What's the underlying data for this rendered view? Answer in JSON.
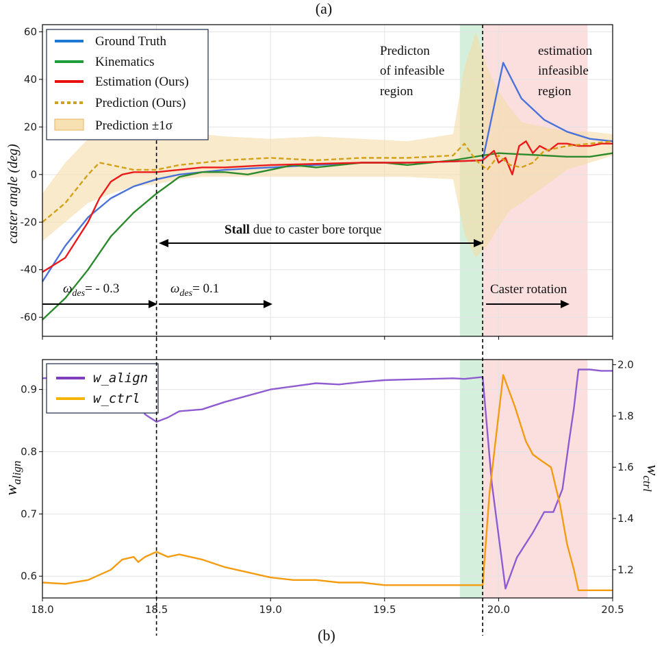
{
  "chart_data": [
    {
      "type": "line",
      "panel_label": "(a)",
      "ylabel": "caster angle (deg)",
      "xlim": [
        18.0,
        20.5
      ],
      "ylim": [
        -68,
        63
      ],
      "yticks": [
        -60,
        -40,
        -20,
        0,
        20,
        40,
        60
      ],
      "grid": true,
      "legend_position": "top-left",
      "shaded_regions": [
        {
          "x": [
            19.83,
            19.93
          ],
          "color": "#d4f0dc"
        },
        {
          "x": [
            19.93,
            20.39
          ],
          "color": "#fbdede"
        }
      ],
      "vlines": [
        18.5,
        19.93
      ],
      "series": [
        {
          "name": "Ground Truth",
          "color": "#4a72d8",
          "x": [
            18.0,
            18.1,
            18.2,
            18.3,
            18.4,
            18.5,
            18.6,
            18.7,
            18.8,
            19.0,
            19.2,
            19.4,
            19.6,
            19.8,
            19.93,
            20.02,
            20.1,
            20.2,
            20.3,
            20.4,
            20.5
          ],
          "y": [
            -45,
            -30,
            -18,
            -10,
            -5,
            -2,
            0,
            1,
            2,
            3,
            4,
            5,
            5,
            5.5,
            6,
            47,
            32,
            23,
            18,
            15,
            14
          ]
        },
        {
          "name": "Kinematics",
          "color": "#2b8a2b",
          "x": [
            18.0,
            18.1,
            18.2,
            18.3,
            18.4,
            18.5,
            18.6,
            18.7,
            18.8,
            18.9,
            19.0,
            19.1,
            19.2,
            19.3,
            19.4,
            19.5,
            19.6,
            19.7,
            19.8,
            19.93,
            20.0,
            20.1,
            20.2,
            20.3,
            20.4,
            20.5
          ],
          "y": [
            -61,
            -52,
            -40,
            -26,
            -16,
            -8,
            -1,
            1,
            1,
            0,
            2,
            4,
            3,
            4,
            5,
            5,
            4,
            5,
            6,
            8,
            9,
            8.5,
            8,
            7.5,
            7.5,
            9
          ]
        },
        {
          "name": "Estimation (Ours)",
          "color": "#ea1a1a",
          "x": [
            18.0,
            18.1,
            18.2,
            18.25,
            18.3,
            18.35,
            18.4,
            18.5,
            18.6,
            18.7,
            18.8,
            19.0,
            19.2,
            19.4,
            19.6,
            19.8,
            19.93,
            19.98,
            20.0,
            20.03,
            20.06,
            20.09,
            20.12,
            20.15,
            20.18,
            20.22,
            20.26,
            20.3,
            20.35,
            20.4,
            20.45,
            20.5
          ],
          "y": [
            -41,
            -35,
            -20,
            -10,
            -3,
            0,
            1,
            1,
            2,
            3,
            3,
            4,
            4.5,
            5,
            5,
            5.5,
            6,
            10,
            5,
            7,
            0,
            12,
            14,
            9,
            12,
            10,
            13,
            13,
            12,
            12,
            13,
            13
          ]
        },
        {
          "name": "Prediction  (Ours)",
          "color": "#d4a017",
          "dash": true,
          "x": [
            18.0,
            18.1,
            18.2,
            18.25,
            18.3,
            18.35,
            18.4,
            18.5,
            18.6,
            18.7,
            18.8,
            19.0,
            19.2,
            19.4,
            19.6,
            19.8,
            19.85,
            19.9,
            19.95,
            20.0,
            20.05,
            20.1,
            20.15,
            20.2,
            20.3,
            20.4,
            20.5
          ],
          "y": [
            -20,
            -12,
            0,
            5,
            4,
            3,
            2,
            2,
            4,
            5,
            6,
            7,
            6,
            7,
            7,
            8,
            13,
            6,
            2,
            8,
            4,
            3,
            5,
            10,
            12,
            13,
            14
          ]
        }
      ],
      "band": {
        "name": "Prediction $\\pm 1\\sigma$",
        "x": [
          18.0,
          18.1,
          18.2,
          18.3,
          18.4,
          18.5,
          18.6,
          18.7,
          18.8,
          19.0,
          19.2,
          19.4,
          19.6,
          19.8,
          19.85,
          19.9,
          19.95,
          20.0,
          20.05,
          20.1,
          20.2,
          20.3,
          20.4,
          20.5
        ],
        "upper": [
          -8,
          5,
          15,
          25,
          22,
          18,
          18,
          17,
          16,
          15,
          16,
          15,
          14,
          17,
          45,
          60,
          45,
          35,
          28,
          22,
          20,
          18,
          18,
          17
        ],
        "lower": [
          -28,
          -20,
          -12,
          -8,
          -5,
          -4,
          -2,
          -1,
          -1,
          -1,
          -1,
          -1,
          -1,
          -2,
          -25,
          -35,
          -30,
          -22,
          -15,
          -12,
          -5,
          2,
          5,
          8
        ]
      },
      "legend_labels": {
        "gt": "Ground Truth",
        "kin": "Kinematics",
        "est": "Estimation (Ours)",
        "pred": "Prediction  (Ours)",
        "band_prefix": "Prediction",
        "band_suffix": "±1σ"
      },
      "annotations": {
        "stall_bold": "Stall",
        "stall_rest": " due to caster bore torque",
        "w1_sym": "ω",
        "w1_sub": "des",
        "w1_val": "= - 0.3",
        "w2_sym": "ω",
        "w2_sub": "des",
        "w2_val": "= 0.1",
        "caster_rotation": "Caster rotation",
        "predict_region": [
          "Predicton",
          "of infeasible",
          "region"
        ],
        "infeasible_region": [
          "estimation",
          "infeasible",
          "region"
        ]
      }
    },
    {
      "type": "line",
      "panel_label": "(b)",
      "ylabel_left": "w_align",
      "ylabel_right": "w_ctrl",
      "xlim": [
        18.0,
        20.5
      ],
      "xticks": [
        18.0,
        18.5,
        19.0,
        19.5,
        20.0,
        20.5
      ],
      "ylim_left": [
        0.565,
        0.948
      ],
      "yticks_left": [
        0.6,
        0.7,
        0.8,
        0.9
      ],
      "ylim_right": [
        1.09,
        2.02
      ],
      "yticks_right": [
        1.2,
        1.4,
        1.6,
        1.8,
        2.0
      ],
      "legend_position": "top-left",
      "series": [
        {
          "name": "w_align",
          "axis": "left",
          "color": "#8e5bd0",
          "x": [
            18.0,
            18.1,
            18.2,
            18.3,
            18.4,
            18.45,
            18.5,
            18.55,
            18.6,
            18.7,
            18.8,
            18.9,
            19.0,
            19.1,
            19.2,
            19.3,
            19.4,
            19.5,
            19.6,
            19.7,
            19.8,
            19.85,
            19.93,
            19.97,
            20.03,
            20.08,
            20.15,
            20.2,
            20.24,
            20.28,
            20.31,
            20.33,
            20.35,
            20.4,
            20.45,
            20.5
          ],
          "y": [
            0.918,
            0.92,
            0.918,
            0.915,
            0.9,
            0.86,
            0.848,
            0.855,
            0.865,
            0.868,
            0.88,
            0.89,
            0.9,
            0.905,
            0.91,
            0.908,
            0.912,
            0.915,
            0.916,
            0.917,
            0.918,
            0.917,
            0.92,
            0.75,
            0.58,
            0.63,
            0.67,
            0.703,
            0.703,
            0.74,
            0.82,
            0.87,
            0.932,
            0.932,
            0.93,
            0.93
          ]
        },
        {
          "name": "w_ctrl",
          "axis": "right",
          "color": "#f39c12",
          "x": [
            18.0,
            18.1,
            18.2,
            18.3,
            18.35,
            18.4,
            18.42,
            18.45,
            18.5,
            18.55,
            18.6,
            18.7,
            18.8,
            18.9,
            19.0,
            19.1,
            19.2,
            19.3,
            19.4,
            19.5,
            19.6,
            19.7,
            19.8,
            19.93,
            19.96,
            20.02,
            20.07,
            20.12,
            20.15,
            20.18,
            20.23,
            20.27,
            20.3,
            20.33,
            20.35,
            20.4,
            20.5
          ],
          "y": [
            1.15,
            1.145,
            1.16,
            1.2,
            1.24,
            1.25,
            1.23,
            1.25,
            1.27,
            1.25,
            1.26,
            1.24,
            1.21,
            1.19,
            1.17,
            1.16,
            1.16,
            1.15,
            1.15,
            1.14,
            1.14,
            1.14,
            1.14,
            1.14,
            1.5,
            1.96,
            1.84,
            1.7,
            1.65,
            1.63,
            1.6,
            1.45,
            1.3,
            1.2,
            1.12,
            1.12,
            1.12
          ]
        }
      ],
      "legend_labels": {
        "align": "w_align",
        "ctrl": "w_ctrl"
      },
      "axis_labels": {
        "left_base": "w",
        "left_sub": "align",
        "right_base": "w",
        "right_sub": "ctrl"
      }
    }
  ],
  "colors": {
    "green_band": "#d4f0dc",
    "red_band": "#fbdede",
    "sigma_band": "#f3dca6"
  }
}
